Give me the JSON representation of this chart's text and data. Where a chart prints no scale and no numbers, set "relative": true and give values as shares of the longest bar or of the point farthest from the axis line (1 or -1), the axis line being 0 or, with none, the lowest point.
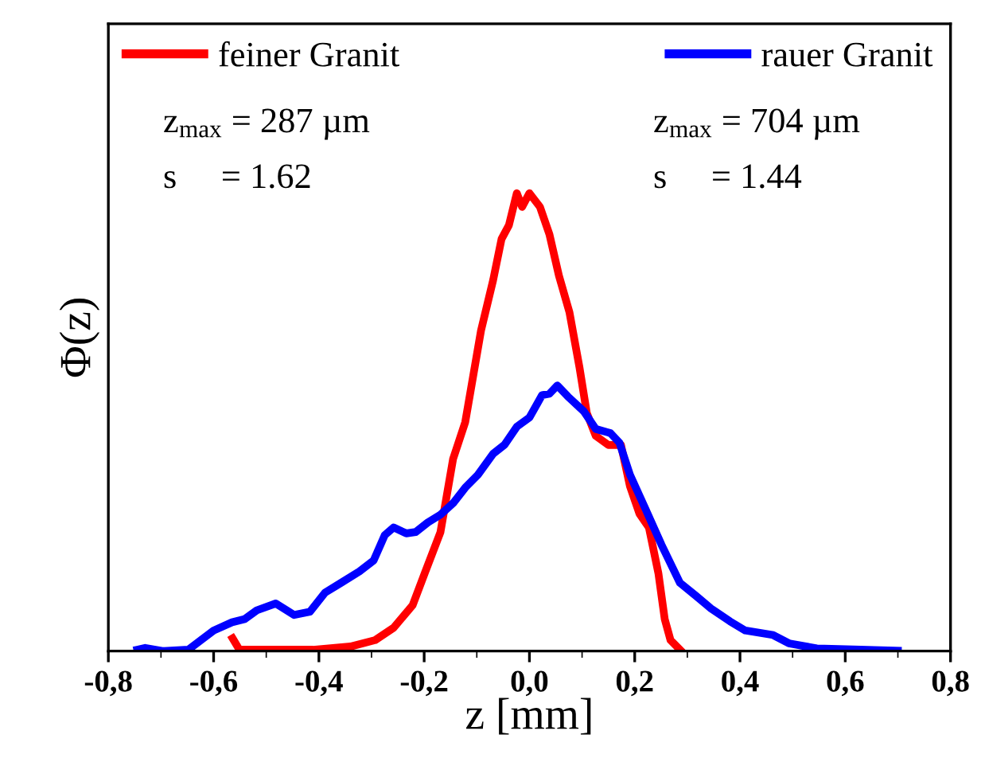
{
  "chart_data": {
    "type": "line",
    "relative": true,
    "xlabel": "z [mm]",
    "ylabel": "Φ(z)",
    "xlim": [
      -0.8,
      0.8
    ],
    "xticks": [
      {
        "value": -0.8,
        "label": "-0,8"
      },
      {
        "value": -0.6,
        "label": "-0,6"
      },
      {
        "value": -0.4,
        "label": "-0,4"
      },
      {
        "value": -0.2,
        "label": "-0,2"
      },
      {
        "value": 0.0,
        "label": "0,0"
      },
      {
        "value": 0.2,
        "label": "0,2"
      },
      {
        "value": 0.4,
        "label": "0,4"
      },
      {
        "value": 0.6,
        "label": "0,6"
      },
      {
        "value": 0.8,
        "label": "0,8"
      }
    ],
    "legend": "top",
    "grid": false,
    "marker": "none",
    "line_style": "solid",
    "annotations": [
      "z$_{max}$ = 287 µm",
      "s     = 1.62",
      "z$_{max}$ = 704 µm",
      "s     = 1.44"
    ],
    "series": [
      {
        "name": "feiner Granit",
        "color": "#ff0000",
        "x": [
          -0.564,
          -0.551,
          -0.411,
          -0.34,
          -0.293,
          -0.258,
          -0.222,
          -0.199,
          -0.169,
          -0.145,
          -0.122,
          -0.092,
          -0.069,
          -0.053,
          -0.039,
          -0.024,
          -0.014,
          0.0,
          0.02,
          0.038,
          0.056,
          0.076,
          0.095,
          0.109,
          0.126,
          0.15,
          0.174,
          0.191,
          0.209,
          0.227,
          0.245,
          0.257,
          0.268,
          0.286
        ],
        "values": [
          0.028,
          0.003,
          0.003,
          0.01,
          0.024,
          0.051,
          0.1,
          0.17,
          0.26,
          0.42,
          0.5,
          0.7,
          0.81,
          0.9,
          0.93,
          1.0,
          0.97,
          1.0,
          0.97,
          0.91,
          0.82,
          0.74,
          0.62,
          0.52,
          0.47,
          0.45,
          0.45,
          0.36,
          0.3,
          0.27,
          0.17,
          0.07,
          0.024,
          0.003
        ]
      },
      {
        "name": "rauer Granit",
        "color": "#0000ff",
        "x": [
          -0.745,
          -0.73,
          -0.695,
          -0.648,
          -0.624,
          -0.6,
          -0.565,
          -0.541,
          -0.518,
          -0.482,
          -0.447,
          -0.417,
          -0.388,
          -0.358,
          -0.323,
          -0.296,
          -0.275,
          -0.258,
          -0.234,
          -0.216,
          -0.193,
          -0.169,
          -0.145,
          -0.122,
          -0.098,
          -0.069,
          -0.047,
          -0.024,
          0.0,
          0.024,
          0.038,
          0.053,
          0.073,
          0.103,
          0.126,
          0.154,
          0.171,
          0.191,
          0.221,
          0.251,
          0.286,
          0.316,
          0.345,
          0.381,
          0.41,
          0.463,
          0.493,
          0.546,
          0.629,
          0.7
        ],
        "values": [
          0.003,
          0.007,
          0.0,
          0.003,
          0.024,
          0.045,
          0.063,
          0.07,
          0.089,
          0.104,
          0.079,
          0.086,
          0.128,
          0.149,
          0.174,
          0.198,
          0.253,
          0.27,
          0.257,
          0.26,
          0.281,
          0.298,
          0.323,
          0.357,
          0.385,
          0.431,
          0.451,
          0.49,
          0.51,
          0.559,
          0.562,
          0.58,
          0.556,
          0.524,
          0.485,
          0.476,
          0.455,
          0.385,
          0.309,
          0.232,
          0.149,
          0.121,
          0.093,
          0.065,
          0.045,
          0.035,
          0.017,
          0.006,
          0.003,
          0.001
        ]
      }
    ]
  }
}
